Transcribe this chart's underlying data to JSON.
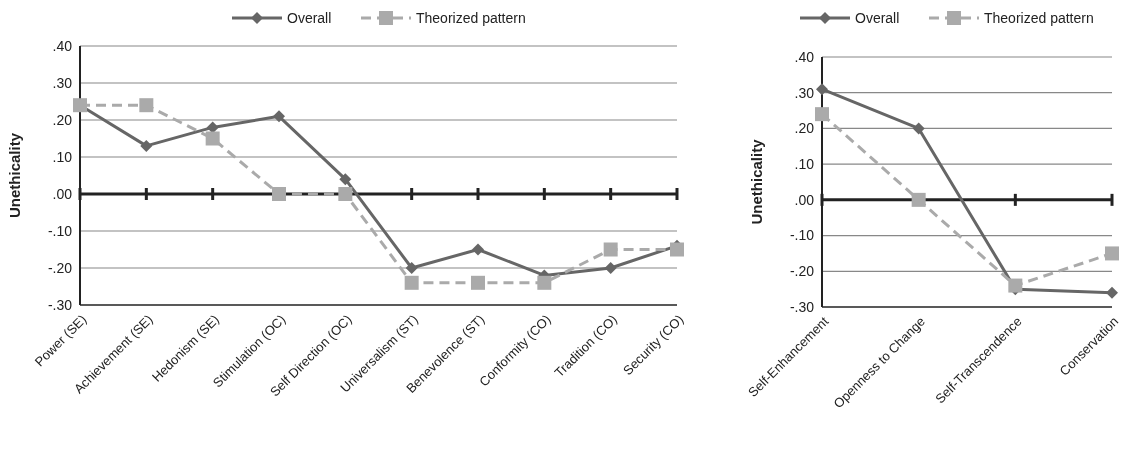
{
  "chart_data": [
    {
      "type": "line",
      "ylabel": "Unethicality",
      "categories": [
        "Power (SE)",
        "Achievement (SE)",
        "Hedonism (SE)",
        "Stimulation (OC)",
        "Self Direction (OC)",
        "Universalism (ST)",
        "Benevolence (ST)",
        "Conformity (CO)",
        "Tradition (CO)",
        "Security (CO)"
      ],
      "series": [
        {
          "name": "Overall",
          "color": "#666666",
          "marker": "diamond",
          "line_style": "solid",
          "values": [
            0.24,
            0.13,
            0.18,
            0.21,
            0.04,
            -0.2,
            -0.15,
            -0.22,
            -0.2,
            -0.14
          ]
        },
        {
          "name": "Theorized pattern",
          "color": "#aaaaaa",
          "marker": "square",
          "line_style": "dashed",
          "values": [
            0.24,
            0.24,
            0.15,
            0.0,
            0.0,
            -0.24,
            -0.24,
            -0.24,
            -0.15,
            -0.15
          ]
        }
      ],
      "ylim": [
        -0.3,
        0.4
      ],
      "yticks": [
        {
          "value": -0.3,
          "label": "-.30"
        },
        {
          "value": -0.2,
          "label": "-.20"
        },
        {
          "value": -0.1,
          "label": "-.10"
        },
        {
          "value": 0,
          "label": ".00"
        },
        {
          "value": 0.1,
          "label": ".10"
        },
        {
          "value": 0.2,
          "label": ".20"
        },
        {
          "value": 0.3,
          "label": ".30"
        },
        {
          "value": 0.4,
          "label": ".40"
        }
      ],
      "grid": "y",
      "legend": "top"
    },
    {
      "type": "line",
      "ylabel": "Unethicality",
      "categories": [
        "Self-Enhancement",
        "Openness to Change",
        "Self-Transcendence",
        "Conservation"
      ],
      "series": [
        {
          "name": "Overall",
          "color": "#666666",
          "marker": "diamond",
          "line_style": "solid",
          "values": [
            0.31,
            0.2,
            -0.25,
            -0.26
          ]
        },
        {
          "name": "Theorized pattern",
          "color": "#aaaaaa",
          "marker": "square",
          "line_style": "dashed",
          "values": [
            0.24,
            0.0,
            -0.24,
            -0.15
          ]
        }
      ],
      "ylim": [
        -0.3,
        0.4
      ],
      "yticks": [
        {
          "value": -0.3,
          "label": "-.30"
        },
        {
          "value": -0.2,
          "label": "-.20"
        },
        {
          "value": -0.1,
          "label": "-.10"
        },
        {
          "value": 0,
          "label": ".00"
        },
        {
          "value": 0.1,
          "label": ".10"
        },
        {
          "value": 0.2,
          "label": ".20"
        },
        {
          "value": 0.3,
          "label": ".30"
        },
        {
          "value": 0.4,
          "label": ".40"
        }
      ],
      "grid": "y",
      "legend": "top"
    }
  ]
}
